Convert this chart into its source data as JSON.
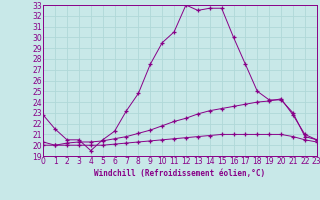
{
  "xlabel": "Windchill (Refroidissement éolien,°C)",
  "xlim": [
    0,
    23
  ],
  "ylim": [
    19,
    33
  ],
  "yticks": [
    19,
    20,
    21,
    22,
    23,
    24,
    25,
    26,
    27,
    28,
    29,
    30,
    31,
    32,
    33
  ],
  "xticks": [
    0,
    1,
    2,
    3,
    4,
    5,
    6,
    7,
    8,
    9,
    10,
    11,
    12,
    13,
    14,
    15,
    16,
    17,
    18,
    19,
    20,
    21,
    22,
    23
  ],
  "bg_color": "#c8e8e8",
  "line_color": "#880088",
  "grid_color": "#b0d8d8",
  "line1_x": [
    0,
    1,
    2,
    3,
    4,
    5,
    6,
    7,
    8,
    9,
    10,
    11,
    12,
    13,
    14,
    15,
    16,
    17,
    18,
    19,
    20,
    21,
    22,
    23
  ],
  "line1_y": [
    22.8,
    21.5,
    20.5,
    20.5,
    19.5,
    20.5,
    21.3,
    23.2,
    24.8,
    27.5,
    29.5,
    30.5,
    33.0,
    32.5,
    32.7,
    32.7,
    30.0,
    27.5,
    25.0,
    24.2,
    24.2,
    23.0,
    20.8,
    20.5
  ],
  "line2_x": [
    0,
    1,
    2,
    3,
    4,
    5,
    6,
    7,
    8,
    9,
    10,
    11,
    12,
    13,
    14,
    15,
    16,
    17,
    18,
    19,
    20,
    21,
    22,
    23
  ],
  "line2_y": [
    20.3,
    20.0,
    20.2,
    20.3,
    20.3,
    20.4,
    20.6,
    20.8,
    21.1,
    21.4,
    21.8,
    22.2,
    22.5,
    22.9,
    23.2,
    23.4,
    23.6,
    23.8,
    24.0,
    24.1,
    24.3,
    22.8,
    21.0,
    20.5
  ],
  "line3_x": [
    0,
    1,
    2,
    3,
    4,
    5,
    6,
    7,
    8,
    9,
    10,
    11,
    12,
    13,
    14,
    15,
    16,
    17,
    18,
    19,
    20,
    21,
    22,
    23
  ],
  "line3_y": [
    20.0,
    20.0,
    20.0,
    20.0,
    20.0,
    20.0,
    20.1,
    20.2,
    20.3,
    20.4,
    20.5,
    20.6,
    20.7,
    20.8,
    20.9,
    21.0,
    21.0,
    21.0,
    21.0,
    21.0,
    21.0,
    20.8,
    20.5,
    20.3
  ],
  "tick_fontsize": 5.5,
  "xlabel_fontsize": 5.5
}
